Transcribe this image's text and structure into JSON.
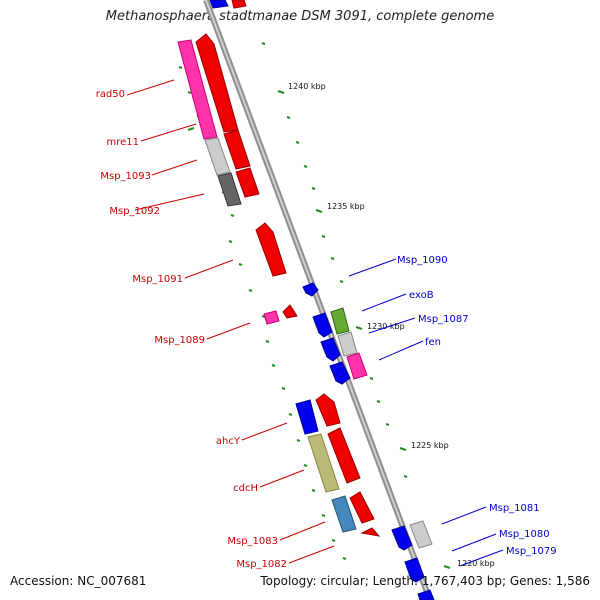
{
  "title": "Methanosphaera stadtmanae DSM 3091, complete genome",
  "footer": {
    "accession": "Accession: NC_007681",
    "summary": "Topology: circular; Length: 1,767,403 bp; Genes: 1,586"
  },
  "ticks": {
    "t1240": "1240 kbp",
    "t1235": "1235 kbp",
    "t1230": "1230 kbp",
    "t1225": "1225 kbp",
    "t1220": "1220 kbp"
  },
  "labels": {
    "rad50": "rad50",
    "mre11": "mre11",
    "msp1093": "Msp_1093",
    "msp1092": "Msp_1092",
    "msp1091": "Msp_1091",
    "msp1089": "Msp_1089",
    "ahcy": "ahcY",
    "cdch": "cdcH",
    "msp1083": "Msp_1083",
    "msp1082": "Msp_1082",
    "msp1090": "Msp_1090",
    "exob": "exoB",
    "msp1087": "Msp_1087",
    "fen": "fen",
    "msp1081": "Msp_1081",
    "msp1080": "Msp_1080",
    "msp1079": "Msp_1079"
  },
  "colors": {
    "reverse_strand": "#cc0000",
    "forward_strand": "#0000cc",
    "backbone": "#999999",
    "tick": "#228b22"
  }
}
